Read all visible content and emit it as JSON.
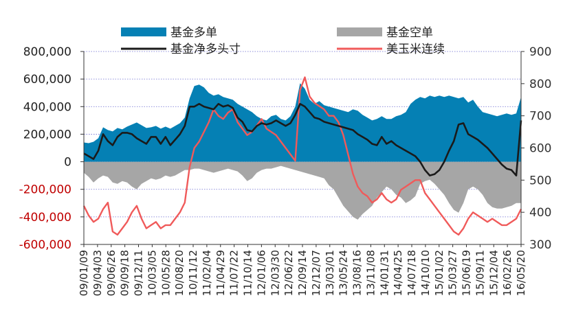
{
  "chart_data": {
    "type": "area",
    "title": "",
    "legend": {
      "placement": "top",
      "entries": [
        {
          "name": "基金多单",
          "color": "#0580B4",
          "kind": "area"
        },
        {
          "name": "基金空单",
          "color": "#A6A6A6",
          "kind": "area"
        },
        {
          "name": "基金净多头寸",
          "color": "#1A1A1A",
          "kind": "line"
        },
        {
          "name": "美玉米连续",
          "color": "#F05A5A",
          "kind": "line"
        }
      ]
    },
    "left_axis": {
      "ylim": [
        -600000,
        800000
      ],
      "ticks": [
        800000,
        600000,
        400000,
        200000,
        0,
        -200000,
        -400000,
        -600000
      ],
      "tick_labels": [
        "800,000",
        "600,000",
        "400,000",
        "200,000",
        "0",
        "-200,000",
        "-400,000",
        "-600,000"
      ],
      "positive_color": "#222222",
      "negative_color": "#C00000"
    },
    "right_axis": {
      "ylim": [
        300,
        900
      ],
      "ticks": [
        900,
        800,
        700,
        600,
        500,
        400,
        300
      ],
      "tick_labels": [
        "900",
        "800",
        "700",
        "600",
        "500",
        "400",
        "300"
      ]
    },
    "x_tick_labels": [
      "09/01/09",
      "09/04/03",
      "09/06/26",
      "09/09/18",
      "09/12/11",
      "10/03/05",
      "10/05/28",
      "10/08/20",
      "10/11/12",
      "11/02/04",
      "11/04/29",
      "11/07/22",
      "11/10/14",
      "12/01/06",
      "12/03/30",
      "12/06/22",
      "12/09/14",
      "12/12/07",
      "13/03/01",
      "13/05/24",
      "13/08/16",
      "13/11/08",
      "14/01/31",
      "14/04/25",
      "14/07/18",
      "14/10/10",
      "15/01/02",
      "15/03/27",
      "15/06/19",
      "15/09/11",
      "15/12/04",
      "16/02/26",
      "16/05/20"
    ],
    "grid": true,
    "series": [
      {
        "name": "基金多单",
        "axis": "left",
        "x_range": [
          "09/01/09",
          "16/05/20"
        ],
        "values": [
          140000,
          135000,
          145000,
          170000,
          250000,
          230000,
          220000,
          245000,
          235000,
          255000,
          270000,
          285000,
          265000,
          245000,
          250000,
          260000,
          240000,
          255000,
          240000,
          260000,
          280000,
          320000,
          460000,
          550000,
          560000,
          540000,
          500000,
          480000,
          490000,
          470000,
          460000,
          450000,
          420000,
          400000,
          380000,
          360000,
          330000,
          310000,
          300000,
          330000,
          340000,
          310000,
          300000,
          330000,
          400000,
          570000,
          530000,
          450000,
          420000,
          440000,
          410000,
          400000,
          390000,
          380000,
          370000,
          360000,
          380000,
          370000,
          340000,
          320000,
          300000,
          310000,
          330000,
          310000,
          310000,
          330000,
          340000,
          360000,
          420000,
          450000,
          470000,
          460000,
          480000,
          470000,
          480000,
          470000,
          480000,
          470000,
          460000,
          470000,
          430000,
          450000,
          400000,
          360000,
          350000,
          340000,
          330000,
          340000,
          350000,
          340000,
          350000,
          470000
        ]
      },
      {
        "name": "基金空单",
        "axis": "left",
        "x_range": [
          "09/01/09",
          "16/05/20"
        ],
        "values": [
          -80000,
          -110000,
          -150000,
          -120000,
          -100000,
          -110000,
          -150000,
          -160000,
          -140000,
          -150000,
          -180000,
          -200000,
          -160000,
          -140000,
          -120000,
          -130000,
          -120000,
          -100000,
          -110000,
          -100000,
          -80000,
          -60000,
          -60000,
          -50000,
          -50000,
          -60000,
          -70000,
          -80000,
          -70000,
          -60000,
          -50000,
          -60000,
          -70000,
          -100000,
          -140000,
          -120000,
          -80000,
          -60000,
          -50000,
          -50000,
          -40000,
          -30000,
          -40000,
          -50000,
          -60000,
          -70000,
          -80000,
          -90000,
          -100000,
          -110000,
          -120000,
          -170000,
          -200000,
          -260000,
          -320000,
          -360000,
          -400000,
          -420000,
          -380000,
          -350000,
          -320000,
          -260000,
          -220000,
          -180000,
          -200000,
          -240000,
          -260000,
          -300000,
          -280000,
          -250000,
          -160000,
          -140000,
          -130000,
          -160000,
          -200000,
          -240000,
          -300000,
          -350000,
          -370000,
          -300000,
          -200000,
          -180000,
          -200000,
          -240000,
          -300000,
          -330000,
          -340000,
          -340000,
          -330000,
          -320000,
          -300000,
          -300000
        ]
      },
      {
        "name": "基金净多头寸",
        "axis": "left",
        "x_range": [
          "09/01/09",
          "16/05/20"
        ],
        "values": [
          60000,
          40000,
          20000,
          80000,
          200000,
          150000,
          120000,
          180000,
          210000,
          210000,
          200000,
          170000,
          150000,
          130000,
          180000,
          180000,
          130000,
          180000,
          120000,
          160000,
          200000,
          260000,
          400000,
          400000,
          420000,
          400000,
          390000,
          380000,
          420000,
          400000,
          410000,
          390000,
          320000,
          290000,
          230000,
          220000,
          260000,
          280000,
          270000,
          280000,
          300000,
          280000,
          260000,
          280000,
          340000,
          420000,
          400000,
          360000,
          320000,
          310000,
          290000,
          280000,
          270000,
          260000,
          250000,
          240000,
          230000,
          200000,
          180000,
          160000,
          130000,
          120000,
          180000,
          130000,
          150000,
          120000,
          100000,
          80000,
          60000,
          40000,
          0,
          -60000,
          -100000,
          -90000,
          -60000,
          0,
          80000,
          150000,
          270000,
          280000,
          200000,
          180000,
          160000,
          130000,
          100000,
          60000,
          20000,
          -20000,
          -50000,
          -60000,
          -100000,
          300000
        ]
      },
      {
        "name": "美玉米连续",
        "axis": "right",
        "x_range": [
          "09/01/09",
          "16/05/20"
        ],
        "values": [
          420,
          390,
          370,
          380,
          410,
          430,
          340,
          330,
          350,
          370,
          400,
          420,
          380,
          350,
          360,
          370,
          350,
          360,
          360,
          380,
          400,
          430,
          540,
          600,
          620,
          650,
          680,
          720,
          700,
          690,
          710,
          720,
          680,
          660,
          640,
          650,
          670,
          690,
          660,
          650,
          640,
          620,
          600,
          580,
          560,
          780,
          820,
          760,
          740,
          730,
          720,
          700,
          700,
          680,
          640,
          580,
          520,
          480,
          460,
          450,
          430,
          440,
          460,
          440,
          430,
          440,
          470,
          480,
          490,
          500,
          500,
          460,
          440,
          420,
          400,
          380,
          360,
          340,
          330,
          350,
          380,
          400,
          390,
          380,
          370,
          380,
          370,
          360,
          360,
          370,
          380,
          410
        ]
      }
    ]
  }
}
